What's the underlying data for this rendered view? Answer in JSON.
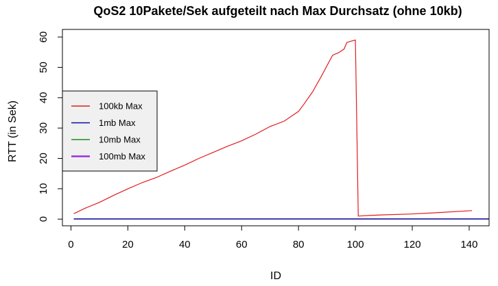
{
  "chart_data": {
    "type": "line",
    "title": "QoS2 10Pakete/Sek aufgeteilt nach Max Durchsatz (ohne 10kb)",
    "xlabel": "ID",
    "ylabel": "RTT (in Sek)",
    "xlim": [
      -3,
      147
    ],
    "ylim": [
      -2.2,
      62.5
    ],
    "xticks": [
      0,
      20,
      40,
      60,
      80,
      100,
      120,
      140
    ],
    "yticks": [
      0,
      10,
      20,
      30,
      40,
      50,
      60
    ],
    "grid": false,
    "legend": {
      "position": "left",
      "background": "#f0f0f0"
    },
    "series": [
      {
        "name": "100kb Max",
        "color": "#e31a1c",
        "x": [
          1,
          5,
          10,
          15,
          20,
          25,
          30,
          35,
          40,
          45,
          50,
          55,
          60,
          65,
          70,
          75,
          80,
          82,
          85,
          88,
          90,
          92,
          94,
          96,
          97,
          98,
          100,
          101,
          105,
          110,
          120,
          130,
          141
        ],
        "values": [
          1.8,
          3.6,
          5.5,
          7.8,
          10.0,
          12.0,
          13.7,
          15.8,
          17.8,
          20.0,
          22.0,
          24.0,
          25.8,
          28.0,
          30.5,
          32.3,
          35.5,
          38.0,
          42.0,
          47.0,
          50.5,
          54.0,
          54.8,
          56.0,
          58.2,
          58.5,
          59.0,
          1.0,
          1.2,
          1.4,
          1.7,
          2.2,
          2.8
        ]
      },
      {
        "name": "1mb Max",
        "color": "#0a0aa8",
        "x": [
          1,
          150
        ],
        "values": [
          0.05,
          0.05
        ]
      },
      {
        "name": "10mb Max",
        "color": "#1a8a1a",
        "x": [
          1,
          150
        ],
        "values": [
          0.05,
          0.05
        ]
      },
      {
        "name": "100mb Max",
        "color": "#9b30d9",
        "x": [
          1,
          150
        ],
        "values": [
          0.05,
          0.05
        ]
      }
    ]
  }
}
